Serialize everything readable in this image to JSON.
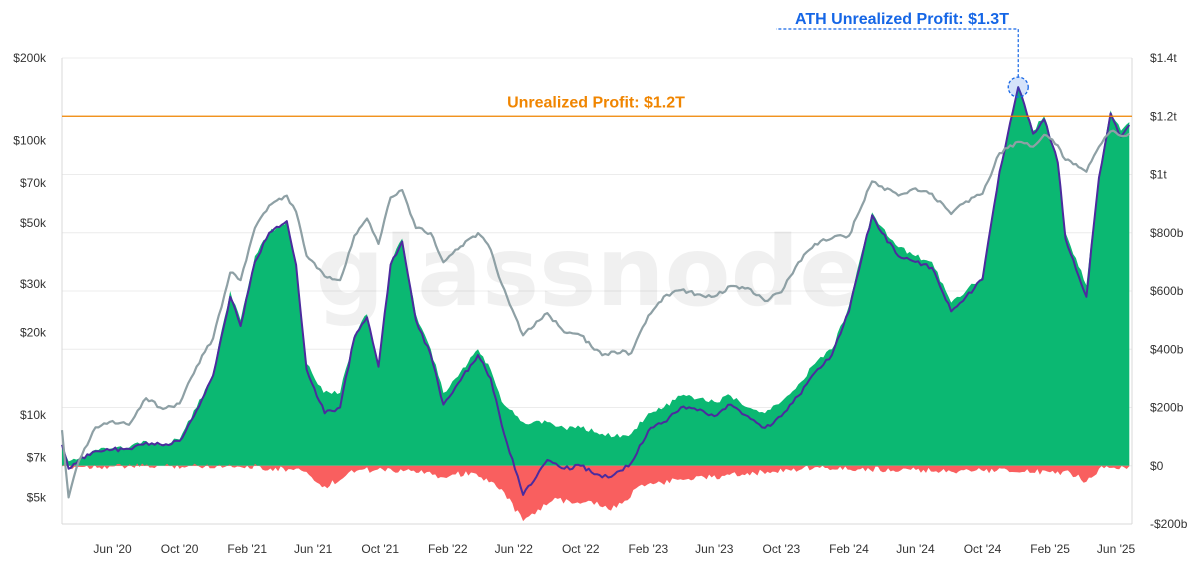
{
  "chart_data": {
    "type": "area",
    "watermark": "glassnode",
    "x_axis": {
      "tick_labels": [
        "Jun '20",
        "Oct '20",
        "Feb '21",
        "Jun '21",
        "Oct '21",
        "Feb '22",
        "Jun '22",
        "Oct '22",
        "Feb '23",
        "Jun '23",
        "Oct '23",
        "Feb '24",
        "Jun '24",
        "Oct '24",
        "Feb '25",
        "Jun '25"
      ]
    },
    "y_left": {
      "scale": "log",
      "range": [
        4000,
        200000
      ],
      "tick_labels": [
        "$200k",
        "$100k",
        "$70k",
        "$50k",
        "$30k",
        "$20k",
        "$10k",
        "$7k",
        "$5k"
      ],
      "tick_values": [
        200000,
        100000,
        70000,
        50000,
        30000,
        20000,
        10000,
        7000,
        5000
      ]
    },
    "y_right": {
      "scale": "linear",
      "range": [
        -200000000000,
        1400000000000
      ],
      "tick_labels": [
        "$1.4t",
        "$1.2t",
        "$1t",
        "$800b",
        "$600b",
        "$400b",
        "$200b",
        "$0",
        "-$200b"
      ],
      "tick_values": [
        1400000000000,
        1200000000000,
        1000000000000,
        800000000000,
        600000000000,
        400000000000,
        200000000000,
        0,
        -200000000000
      ]
    },
    "series": [
      {
        "color": "#0bb872",
        "axis": "right",
        "style": "area-positive",
        "x": [
          "2020-03-01",
          "2020-03-13",
          "2020-04-01",
          "2020-05-01",
          "2020-06-01",
          "2020-07-01",
          "2020-08-01",
          "2020-09-01",
          "2020-10-01",
          "2020-11-01",
          "2020-12-01",
          "2021-01-01",
          "2021-01-20",
          "2021-02-15",
          "2021-03-13",
          "2021-04-14",
          "2021-05-01",
          "2021-05-20",
          "2021-06-20",
          "2021-07-20",
          "2021-08-15",
          "2021-09-07",
          "2021-09-28",
          "2021-10-20",
          "2021-11-10",
          "2021-12-05",
          "2022-01-01",
          "2022-01-24",
          "2022-02-15",
          "2022-03-28",
          "2022-04-20",
          "2022-05-10",
          "2022-06-18",
          "2022-08-01",
          "2022-09-01",
          "2022-10-01",
          "2022-11-09",
          "2022-12-01",
          "2023-01-01",
          "2023-02-01",
          "2023-03-01",
          "2023-04-01",
          "2023-05-01",
          "2023-06-01",
          "2023-07-01",
          "2023-08-01",
          "2023-09-01",
          "2023-10-01",
          "2023-11-01",
          "2023-12-01",
          "2024-01-01",
          "2024-02-01",
          "2024-03-14",
          "2024-04-01",
          "2024-05-01",
          "2024-06-01",
          "2024-07-01",
          "2024-08-05",
          "2024-09-01",
          "2024-10-01",
          "2024-11-01",
          "2024-12-05",
          "2025-01-01",
          "2025-01-21",
          "2025-02-15",
          "2025-03-01",
          "2025-04-08",
          "2025-05-01",
          "2025-05-22",
          "2025-06-10",
          "2025-06-25"
        ],
        "values": [
          75000000000,
          15000000000,
          25000000000,
          55000000000,
          60000000000,
          62000000000,
          85000000000,
          75000000000,
          90000000000,
          200000000000,
          320000000000,
          600000000000,
          500000000000,
          720000000000,
          800000000000,
          840000000000,
          700000000000,
          350000000000,
          250000000000,
          250000000000,
          450000000000,
          520000000000,
          350000000000,
          700000000000,
          780000000000,
          520000000000,
          400000000000,
          250000000000,
          300000000000,
          400000000000,
          330000000000,
          220000000000,
          150000000000,
          150000000000,
          130000000000,
          130000000000,
          110000000000,
          100000000000,
          110000000000,
          180000000000,
          200000000000,
          240000000000,
          230000000000,
          220000000000,
          240000000000,
          200000000000,
          180000000000,
          220000000000,
          280000000000,
          350000000000,
          400000000000,
          550000000000,
          870000000000,
          820000000000,
          750000000000,
          720000000000,
          700000000000,
          560000000000,
          600000000000,
          650000000000,
          1020000000000,
          1300000000000,
          1150000000000,
          1200000000000,
          1050000000000,
          800000000000,
          620000000000,
          1000000000000,
          1220000000000,
          1150000000000,
          1180000000000
        ]
      },
      {
        "color": "#f95f5f",
        "axis": "right",
        "style": "area-negative",
        "x": [
          "2020-03-01",
          "2021-02-01",
          "2021-05-15",
          "2021-06-22",
          "2021-07-20",
          "2021-08-10",
          "2021-12-15",
          "2022-01-24",
          "2022-02-15",
          "2022-03-20",
          "2022-05-10",
          "2022-06-18",
          "2022-07-15",
          "2022-08-15",
          "2022-09-15",
          "2022-10-15",
          "2022-11-20",
          "2022-12-20",
          "2023-01-15",
          "2023-02-15",
          "2023-04-15",
          "2023-06-15",
          "2023-09-15",
          "2023-12-01",
          "2024-08-05",
          "2024-09-06",
          "2025-03-10",
          "2025-04-08",
          "2025-05-01",
          "2025-06-25"
        ],
        "values": [
          -3000000000,
          0,
          -20000000000,
          -70000000000,
          -50000000000,
          -15000000000,
          -15000000000,
          -40000000000,
          -30000000000,
          -25000000000,
          -80000000000,
          -190000000000,
          -150000000000,
          -110000000000,
          -130000000000,
          -120000000000,
          -150000000000,
          -120000000000,
          -70000000000,
          -60000000000,
          -45000000000,
          -35000000000,
          -20000000000,
          -5000000000,
          -20000000000,
          -15000000000,
          -25000000000,
          -55000000000,
          -10000000000,
          -2000000000
        ]
      },
      {
        "color": "#4c2b9e",
        "axis": "right",
        "style": "line",
        "x": [
          "2020-03-01",
          "2020-03-13",
          "2020-04-01",
          "2020-05-01",
          "2020-06-01",
          "2020-07-01",
          "2020-08-01",
          "2020-09-01",
          "2020-10-01",
          "2020-11-01",
          "2020-12-01",
          "2021-01-01",
          "2021-01-20",
          "2021-02-15",
          "2021-03-13",
          "2021-04-14",
          "2021-05-01",
          "2021-05-20",
          "2021-06-22",
          "2021-07-20",
          "2021-08-15",
          "2021-09-07",
          "2021-09-28",
          "2021-10-20",
          "2021-11-10",
          "2021-12-05",
          "2022-01-01",
          "2022-01-24",
          "2022-02-15",
          "2022-03-28",
          "2022-04-20",
          "2022-05-10",
          "2022-06-18",
          "2022-08-01",
          "2022-09-01",
          "2022-10-01",
          "2022-11-09",
          "2022-12-01",
          "2023-01-01",
          "2023-02-01",
          "2023-03-01",
          "2023-04-01",
          "2023-05-01",
          "2023-06-01",
          "2023-07-01",
          "2023-08-01",
          "2023-09-01",
          "2023-10-01",
          "2023-11-01",
          "2023-12-01",
          "2024-01-01",
          "2024-02-01",
          "2024-03-14",
          "2024-04-01",
          "2024-05-01",
          "2024-06-01",
          "2024-07-01",
          "2024-08-05",
          "2024-09-01",
          "2024-10-01",
          "2024-11-01",
          "2024-12-05",
          "2025-01-01",
          "2025-01-21",
          "2025-02-15",
          "2025-03-01",
          "2025-04-08",
          "2025-05-01",
          "2025-05-22",
          "2025-06-10",
          "2025-06-25"
        ],
        "values": [
          72000000000,
          -10000000000,
          20000000000,
          50000000000,
          55000000000,
          58000000000,
          80000000000,
          70000000000,
          85000000000,
          190000000000,
          310000000000,
          580000000000,
          480000000000,
          700000000000,
          800000000000,
          840000000000,
          690000000000,
          330000000000,
          180000000000,
          200000000000,
          440000000000,
          510000000000,
          340000000000,
          690000000000,
          770000000000,
          500000000000,
          380000000000,
          210000000000,
          270000000000,
          380000000000,
          300000000000,
          140000000000,
          -100000000000,
          20000000000,
          -10000000000,
          0,
          -40000000000,
          -30000000000,
          10000000000,
          120000000000,
          150000000000,
          200000000000,
          190000000000,
          170000000000,
          210000000000,
          170000000000,
          130000000000,
          170000000000,
          240000000000,
          320000000000,
          380000000000,
          530000000000,
          860000000000,
          800000000000,
          720000000000,
          700000000000,
          680000000000,
          530000000000,
          580000000000,
          640000000000,
          1010000000000,
          1300000000000,
          1140000000000,
          1190000000000,
          1040000000000,
          780000000000,
          580000000000,
          990000000000,
          1210000000000,
          1130000000000,
          1170000000000
        ]
      },
      {
        "color": "#8ea0a5",
        "axis": "left",
        "style": "line",
        "x": [
          "2020-03-01",
          "2020-03-13",
          "2020-04-01",
          "2020-05-01",
          "2020-06-01",
          "2020-07-01",
          "2020-08-01",
          "2020-09-01",
          "2020-10-01",
          "2020-11-01",
          "2020-12-01",
          "2021-01-01",
          "2021-01-20",
          "2021-02-15",
          "2021-03-13",
          "2021-04-14",
          "2021-05-01",
          "2021-05-20",
          "2021-06-22",
          "2021-07-20",
          "2021-08-15",
          "2021-09-07",
          "2021-09-28",
          "2021-10-20",
          "2021-11-10",
          "2021-12-05",
          "2022-01-01",
          "2022-01-24",
          "2022-02-15",
          "2022-03-28",
          "2022-04-20",
          "2022-05-10",
          "2022-06-18",
          "2022-08-01",
          "2022-09-01",
          "2022-10-01",
          "2022-11-09",
          "2022-12-01",
          "2023-01-01",
          "2023-02-01",
          "2023-03-01",
          "2023-04-01",
          "2023-05-01",
          "2023-06-01",
          "2023-07-01",
          "2023-08-01",
          "2023-09-01",
          "2023-10-01",
          "2023-11-01",
          "2023-12-01",
          "2024-01-01",
          "2024-02-01",
          "2024-03-14",
          "2024-04-01",
          "2024-05-01",
          "2024-06-01",
          "2024-07-01",
          "2024-08-05",
          "2024-09-01",
          "2024-10-01",
          "2024-11-01",
          "2024-12-05",
          "2025-01-01",
          "2025-01-21",
          "2025-02-15",
          "2025-03-01",
          "2025-04-08",
          "2025-05-01",
          "2025-05-22",
          "2025-06-10",
          "2025-06-25"
        ],
        "values": [
          8800,
          5000,
          6800,
          9000,
          9500,
          9200,
          11500,
          10500,
          11000,
          15000,
          19000,
          33000,
          31000,
          48000,
          58000,
          63000,
          55000,
          38000,
          32000,
          31000,
          45000,
          52000,
          42000,
          62000,
          66000,
          48000,
          46000,
          36000,
          40000,
          46000,
          40000,
          30000,
          19500,
          23500,
          20000,
          19500,
          16500,
          17000,
          16800,
          23000,
          27000,
          28500,
          27500,
          27000,
          29500,
          29000,
          26000,
          28000,
          36000,
          42000,
          44000,
          45000,
          71000,
          68000,
          63000,
          67000,
          64000,
          54000,
          60000,
          64000,
          90000,
          99000,
          95000,
          105000,
          96000,
          85000,
          77000,
          95000,
          108000,
          104000,
          106000
        ]
      }
    ],
    "annotations": [
      {
        "text": "Unrealized Profit: $1.2T",
        "color": "#f08500",
        "type": "horizontal-line",
        "value": 1200000000000
      },
      {
        "text": "ATH Unrealized Profit: $1.3T",
        "color": "#1566e6",
        "type": "marker-callout",
        "x": "2024-12-05",
        "value": 1300000000000
      }
    ]
  }
}
